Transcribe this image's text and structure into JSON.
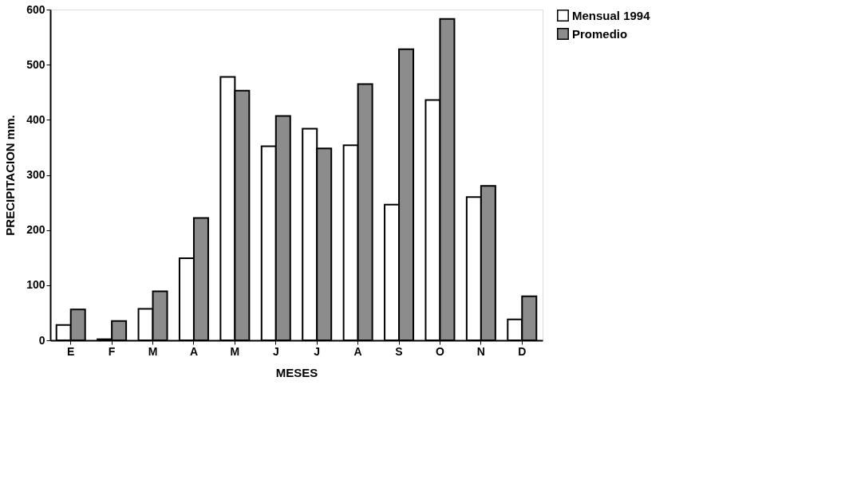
{
  "chart_data": {
    "type": "bar",
    "xlabel": "MESES",
    "ylabel": "PRECIPITACION mm.",
    "categories": [
      "E",
      "F",
      "M",
      "A",
      "M",
      "J",
      "J",
      "A",
      "S",
      "O",
      "N",
      "D"
    ],
    "series": [
      {
        "name": "Mensual 1994",
        "color": "#ffffff",
        "values": [
          28,
          2,
          57,
          149,
          478,
          352,
          384,
          354,
          246,
          436,
          260,
          38
        ]
      },
      {
        "name": "Promedio",
        "color": "#8c8c8c",
        "values": [
          56,
          35,
          89,
          222,
          453,
          407,
          348,
          465,
          528,
          583,
          280,
          80
        ]
      }
    ],
    "ylim": [
      0,
      600
    ],
    "yticks": [
      0,
      100,
      200,
      300,
      400,
      500,
      600
    ],
    "grid": false,
    "legend": "right"
  }
}
